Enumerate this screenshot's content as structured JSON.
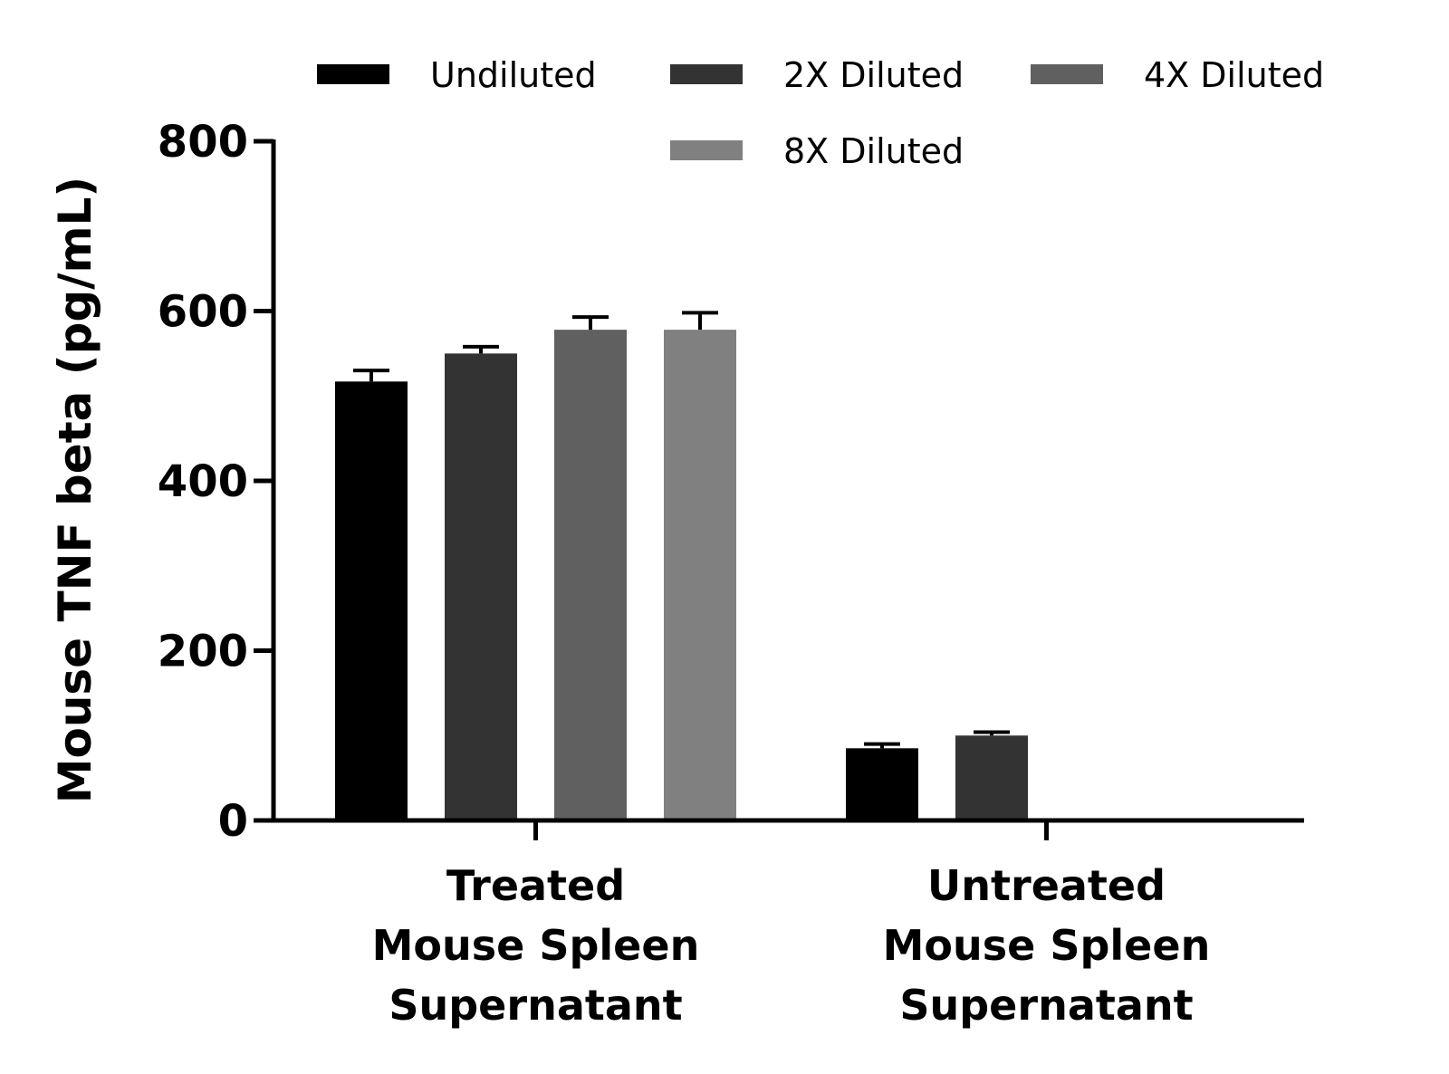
{
  "chart_data": {
    "type": "bar",
    "title": "",
    "ylabel": "Mouse TNF beta (pg/mL)",
    "xlabel": "",
    "ylim": [
      0,
      800
    ],
    "yticks": [
      0,
      200,
      400,
      600,
      800
    ],
    "legend_position": "top",
    "grid": false,
    "categories": [
      [
        "Treated",
        "Mouse Spleen",
        "Supernatant"
      ],
      [
        "Untreated",
        "Mouse Spleen",
        "Supernatant"
      ]
    ],
    "series": [
      {
        "name": "Undiluted",
        "color": "#000000",
        "values": [
          517,
          85
        ],
        "errors": [
          13,
          5
        ]
      },
      {
        "name": "2X Diluted",
        "color": "#333333",
        "values": [
          550,
          100
        ],
        "errors": [
          8,
          4
        ]
      },
      {
        "name": "4X Diluted",
        "color": "#606060",
        "values": [
          578,
          null
        ],
        "errors": [
          15,
          null
        ]
      },
      {
        "name": "8X Diluted",
        "color": "#808080",
        "values": [
          578,
          null
        ],
        "errors": [
          20,
          null
        ]
      }
    ]
  }
}
